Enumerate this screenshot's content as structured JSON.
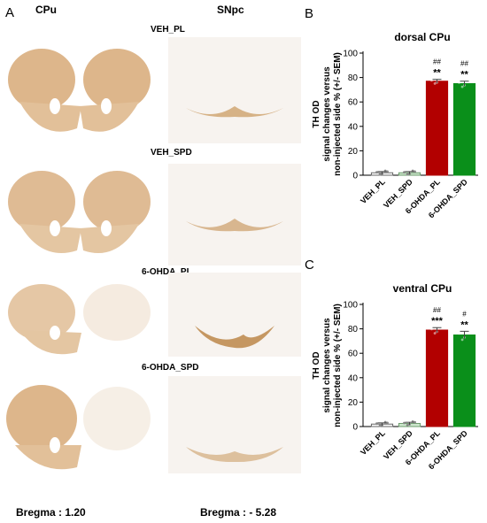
{
  "panelA": {
    "letter": "A",
    "col_cpu": "CPu",
    "col_snpc": "SNpc",
    "groups": [
      "VEH_PL",
      "VEH_SPD",
      "6-OHDA_PL",
      "6-OHDA_SPD"
    ],
    "bregma_left": "Bregma : 1.20",
    "bregma_right": "Bregma : - 5.28"
  },
  "colors": {
    "pl_dark": "#b20000",
    "spd_green": "#0a8f1a",
    "veh_pl": "#ffffff",
    "veh_spd": "#cfe8cf",
    "tissue": "#c8955a"
  },
  "chart_data": [
    {
      "panel": "B",
      "type": "bar",
      "title": "dorsal CPu",
      "ylabel": "TH OD\nsignal changes versus\nnon-injected side % (+/- SEM)",
      "categories": [
        "VEH_PL",
        "VEH_SPD",
        "6-OHDA_PL",
        "6-OHDA_SPD"
      ],
      "values": [
        2,
        2,
        77,
        75
      ],
      "errors": [
        1,
        1,
        1.5,
        2
      ],
      "ylim": [
        0,
        100
      ],
      "yticks": [
        0,
        20,
        40,
        60,
        80,
        100
      ],
      "sig_top": [
        "",
        "",
        "##",
        "##"
      ],
      "sig_bottom": [
        "",
        "",
        "**",
        "**"
      ]
    },
    {
      "panel": "C",
      "type": "bar",
      "title": "ventral CPu",
      "ylabel": "TH OD\nsignal changes versus\nnon-injected side % (+/- SEM)",
      "categories": [
        "VEH_PL",
        "VEH_SPD",
        "6-OHDA_PL",
        "6-OHDA_SPD"
      ],
      "values": [
        2,
        2.5,
        79,
        75
      ],
      "errors": [
        1,
        1,
        2,
        3
      ],
      "ylim": [
        0,
        100
      ],
      "yticks": [
        0,
        20,
        40,
        60,
        80,
        100
      ],
      "sig_top": [
        "",
        "",
        "##",
        "#"
      ],
      "sig_bottom": [
        "",
        "",
        "***",
        "**"
      ]
    }
  ]
}
